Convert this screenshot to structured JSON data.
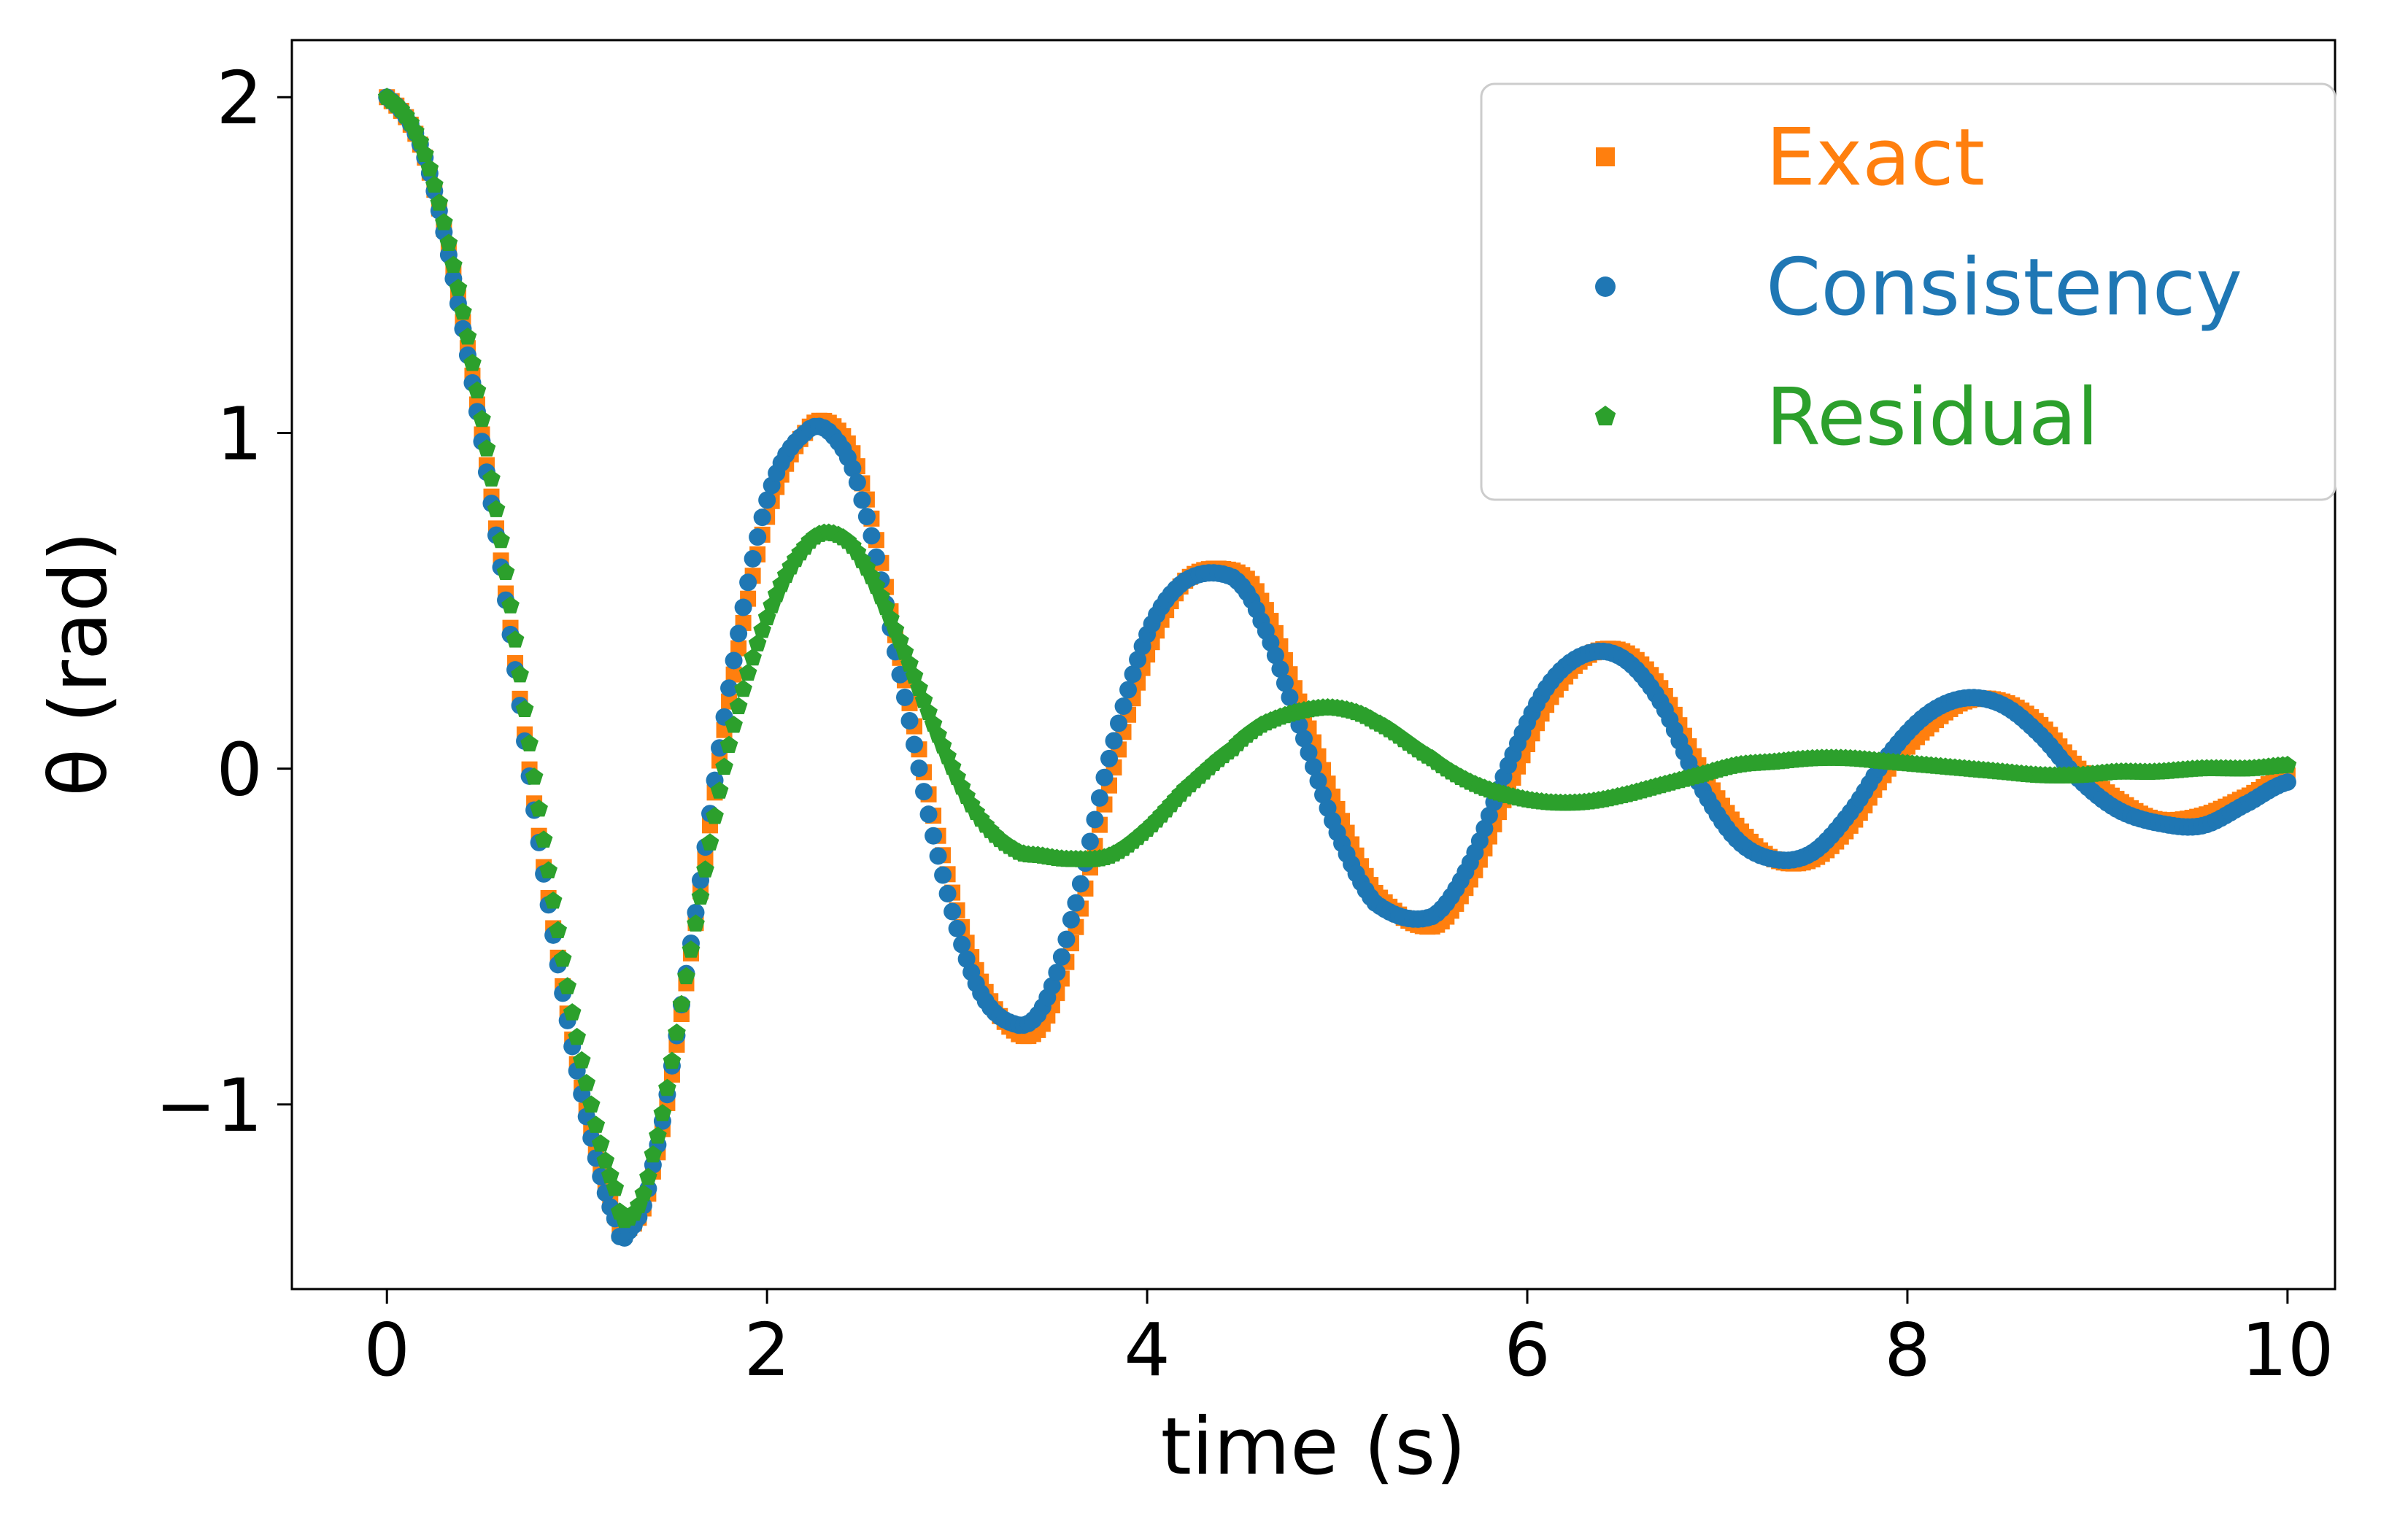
{
  "chart_data": {
    "type": "scatter",
    "xlabel": "time (s)",
    "ylabel": "θ (rad)",
    "xlim": [
      -0.5,
      10.25
    ],
    "ylim": [
      -1.55,
      2.17
    ],
    "x_ticks": [
      0,
      2,
      4,
      6,
      8,
      10
    ],
    "x_tick_labels": [
      "0",
      "2",
      "4",
      "6",
      "8",
      "10"
    ],
    "y_ticks": [
      -1,
      0,
      1,
      2
    ],
    "y_tick_labels": [
      "−1",
      "0",
      "1",
      "2"
    ],
    "grid": false,
    "legend_position": "top-right",
    "x": [
      0,
      0.2,
      0.4,
      0.6,
      0.8,
      1.0,
      1.2,
      1.27,
      1.4,
      1.6,
      1.8,
      2.0,
      2.2,
      2.35,
      2.5,
      2.7,
      2.9,
      3.1,
      3.3,
      3.45,
      3.6,
      3.8,
      4.0,
      4.2,
      4.45,
      4.6,
      4.8,
      5.0,
      5.2,
      5.5,
      5.7,
      5.9,
      6.1,
      6.3,
      6.5,
      6.7,
      6.9,
      7.1,
      7.3,
      7.5,
      7.7,
      7.9,
      8.1,
      8.3,
      8.5,
      8.7,
      8.9,
      9.1,
      9.3,
      9.55,
      9.8,
      10.0
    ],
    "series": [
      {
        "name": "Exact",
        "marker": "square",
        "color": "#ff7f0e",
        "values": [
          2.0,
          1.82,
          1.33,
          0.62,
          -0.2,
          -0.88,
          -1.33,
          -1.37,
          -1.2,
          -0.55,
          0.2,
          0.75,
          1.0,
          1.02,
          0.85,
          0.33,
          -0.2,
          -0.6,
          -0.78,
          -0.76,
          -0.52,
          -0.05,
          0.34,
          0.56,
          0.59,
          0.5,
          0.2,
          -0.12,
          -0.37,
          -0.47,
          -0.33,
          -0.06,
          0.19,
          0.33,
          0.35,
          0.24,
          0.01,
          -0.17,
          -0.27,
          -0.27,
          -0.17,
          0.0,
          0.12,
          0.2,
          0.2,
          0.13,
          0.0,
          -0.09,
          -0.15,
          -0.14,
          -0.08,
          -0.02
        ]
      },
      {
        "name": "Consistency",
        "marker": "circle",
        "color": "#1f77b4",
        "values": [
          2.0,
          1.82,
          1.31,
          0.6,
          -0.22,
          -0.9,
          -1.34,
          -1.38,
          -1.18,
          -0.52,
          0.24,
          0.8,
          1.0,
          0.99,
          0.8,
          0.28,
          -0.26,
          -0.64,
          -0.76,
          -0.71,
          -0.45,
          0.03,
          0.4,
          0.56,
          0.57,
          0.44,
          0.13,
          -0.19,
          -0.4,
          -0.44,
          -0.28,
          0.01,
          0.24,
          0.34,
          0.33,
          0.2,
          -0.04,
          -0.21,
          -0.27,
          -0.25,
          -0.13,
          0.04,
          0.16,
          0.21,
          0.19,
          0.1,
          -0.03,
          -0.12,
          -0.16,
          -0.17,
          -0.1,
          -0.04
        ]
      },
      {
        "name": "Residual",
        "marker": "pentagon",
        "color": "#2ca02c",
        "values": [
          2.0,
          1.83,
          1.36,
          0.68,
          -0.12,
          -0.8,
          -1.25,
          -1.34,
          -1.15,
          -0.54,
          0.07,
          0.45,
          0.66,
          0.7,
          0.62,
          0.38,
          0.1,
          -0.13,
          -0.24,
          -0.26,
          -0.27,
          -0.26,
          -0.18,
          -0.06,
          0.06,
          0.13,
          0.17,
          0.18,
          0.14,
          0.03,
          -0.04,
          -0.08,
          -0.1,
          -0.1,
          -0.08,
          -0.05,
          -0.02,
          0.01,
          0.02,
          0.03,
          0.03,
          0.02,
          0.01,
          0.0,
          -0.01,
          -0.02,
          -0.02,
          -0.01,
          -0.01,
          0.0,
          0.0,
          0.01
        ]
      }
    ]
  }
}
